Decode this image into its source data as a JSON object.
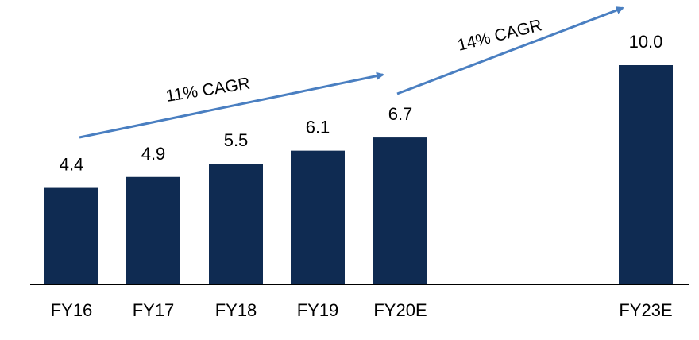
{
  "chart_data": {
    "type": "bar",
    "title": "",
    "xlabel": "",
    "ylabel": "",
    "categories": [
      "FY16",
      "FY17",
      "FY18",
      "FY19",
      "FY20E",
      "FY23E"
    ],
    "values": [
      4.4,
      4.9,
      5.5,
      6.1,
      6.7,
      10.0
    ],
    "value_labels": [
      "4.4",
      "4.9",
      "5.5",
      "6.1",
      "6.7",
      "10.0"
    ],
    "ylim": [
      0,
      10.0
    ],
    "grid": false,
    "bar_color": "#0f2b52",
    "axis_color": "#000000",
    "annotations": [
      {
        "text": "11% CAGR",
        "from": "FY16",
        "to": "FY20E",
        "color": "#4a7fc1"
      },
      {
        "text": "14% CAGR",
        "from": "FY20E",
        "to": "FY23E",
        "color": "#4a7fc1"
      }
    ]
  }
}
